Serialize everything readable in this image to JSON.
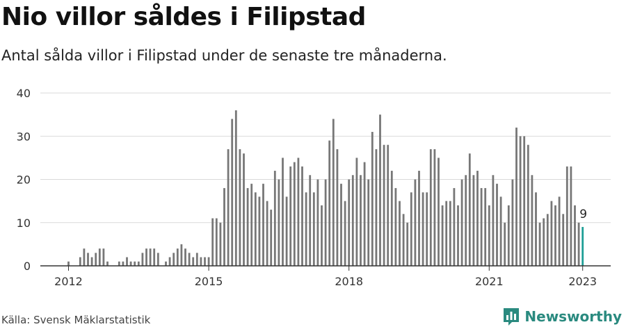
{
  "header": {
    "title": "Nio villor såldes i Filipstad",
    "subtitle": "Antal sålda villor i Filipstad under de senaste tre månaderna."
  },
  "footer": {
    "source": "Källa: Svensk Mäklarstatistik",
    "brand": "Newsworthy"
  },
  "colors": {
    "bar": "#777777",
    "highlight": "#1e9e96",
    "grid": "#d9d9d9",
    "axis": "#333333",
    "brand": "#2a8a7f"
  },
  "icons": {
    "brand_logo": "bar-chart-speech-bubble-icon"
  },
  "chart_data": {
    "type": "bar",
    "title": "Nio villor såldes i Filipstad",
    "subtitle": "Antal sålda villor i Filipstad under de senaste tre månaderna.",
    "xlabel": "",
    "ylabel": "",
    "ylim": [
      0,
      40
    ],
    "yticks": [
      0,
      10,
      20,
      30,
      40
    ],
    "xticks": [
      {
        "label": "2012",
        "index": 0
      },
      {
        "label": "2015",
        "index": 36
      },
      {
        "label": "2018",
        "index": 72
      },
      {
        "label": "2021",
        "index": 108
      },
      {
        "label": "2023",
        "index": 132
      }
    ],
    "grid": true,
    "x_start": "2012-01",
    "x_end": "2023-01",
    "interval": "monthly",
    "highlight_index": 132,
    "highlight_label": "9",
    "values": [
      1,
      0,
      0,
      2,
      4,
      3,
      2,
      3,
      4,
      4,
      1,
      0,
      0,
      1,
      1,
      2,
      1,
      1,
      1,
      3,
      4,
      4,
      4,
      3,
      0,
      1,
      2,
      3,
      4,
      5,
      4,
      3,
      2,
      3,
      2,
      2,
      2,
      11,
      11,
      10,
      18,
      27,
      34,
      36,
      27,
      26,
      18,
      19,
      17,
      16,
      19,
      15,
      13,
      22,
      20,
      25,
      16,
      23,
      24,
      25,
      23,
      17,
      21,
      17,
      20,
      14,
      20,
      29,
      34,
      27,
      19,
      15,
      20,
      21,
      25,
      21,
      24,
      20,
      31,
      27,
      35,
      28,
      28,
      22,
      18,
      15,
      12,
      10,
      17,
      20,
      22,
      17,
      17,
      27,
      27,
      25,
      14,
      15,
      15,
      18,
      14,
      20,
      21,
      26,
      21,
      22,
      18,
      18,
      14,
      21,
      19,
      16,
      10,
      14,
      20,
      32,
      30,
      30,
      28,
      21,
      17,
      10,
      11,
      12,
      15,
      14,
      16,
      12,
      23,
      23,
      14,
      10,
      9
    ]
  }
}
